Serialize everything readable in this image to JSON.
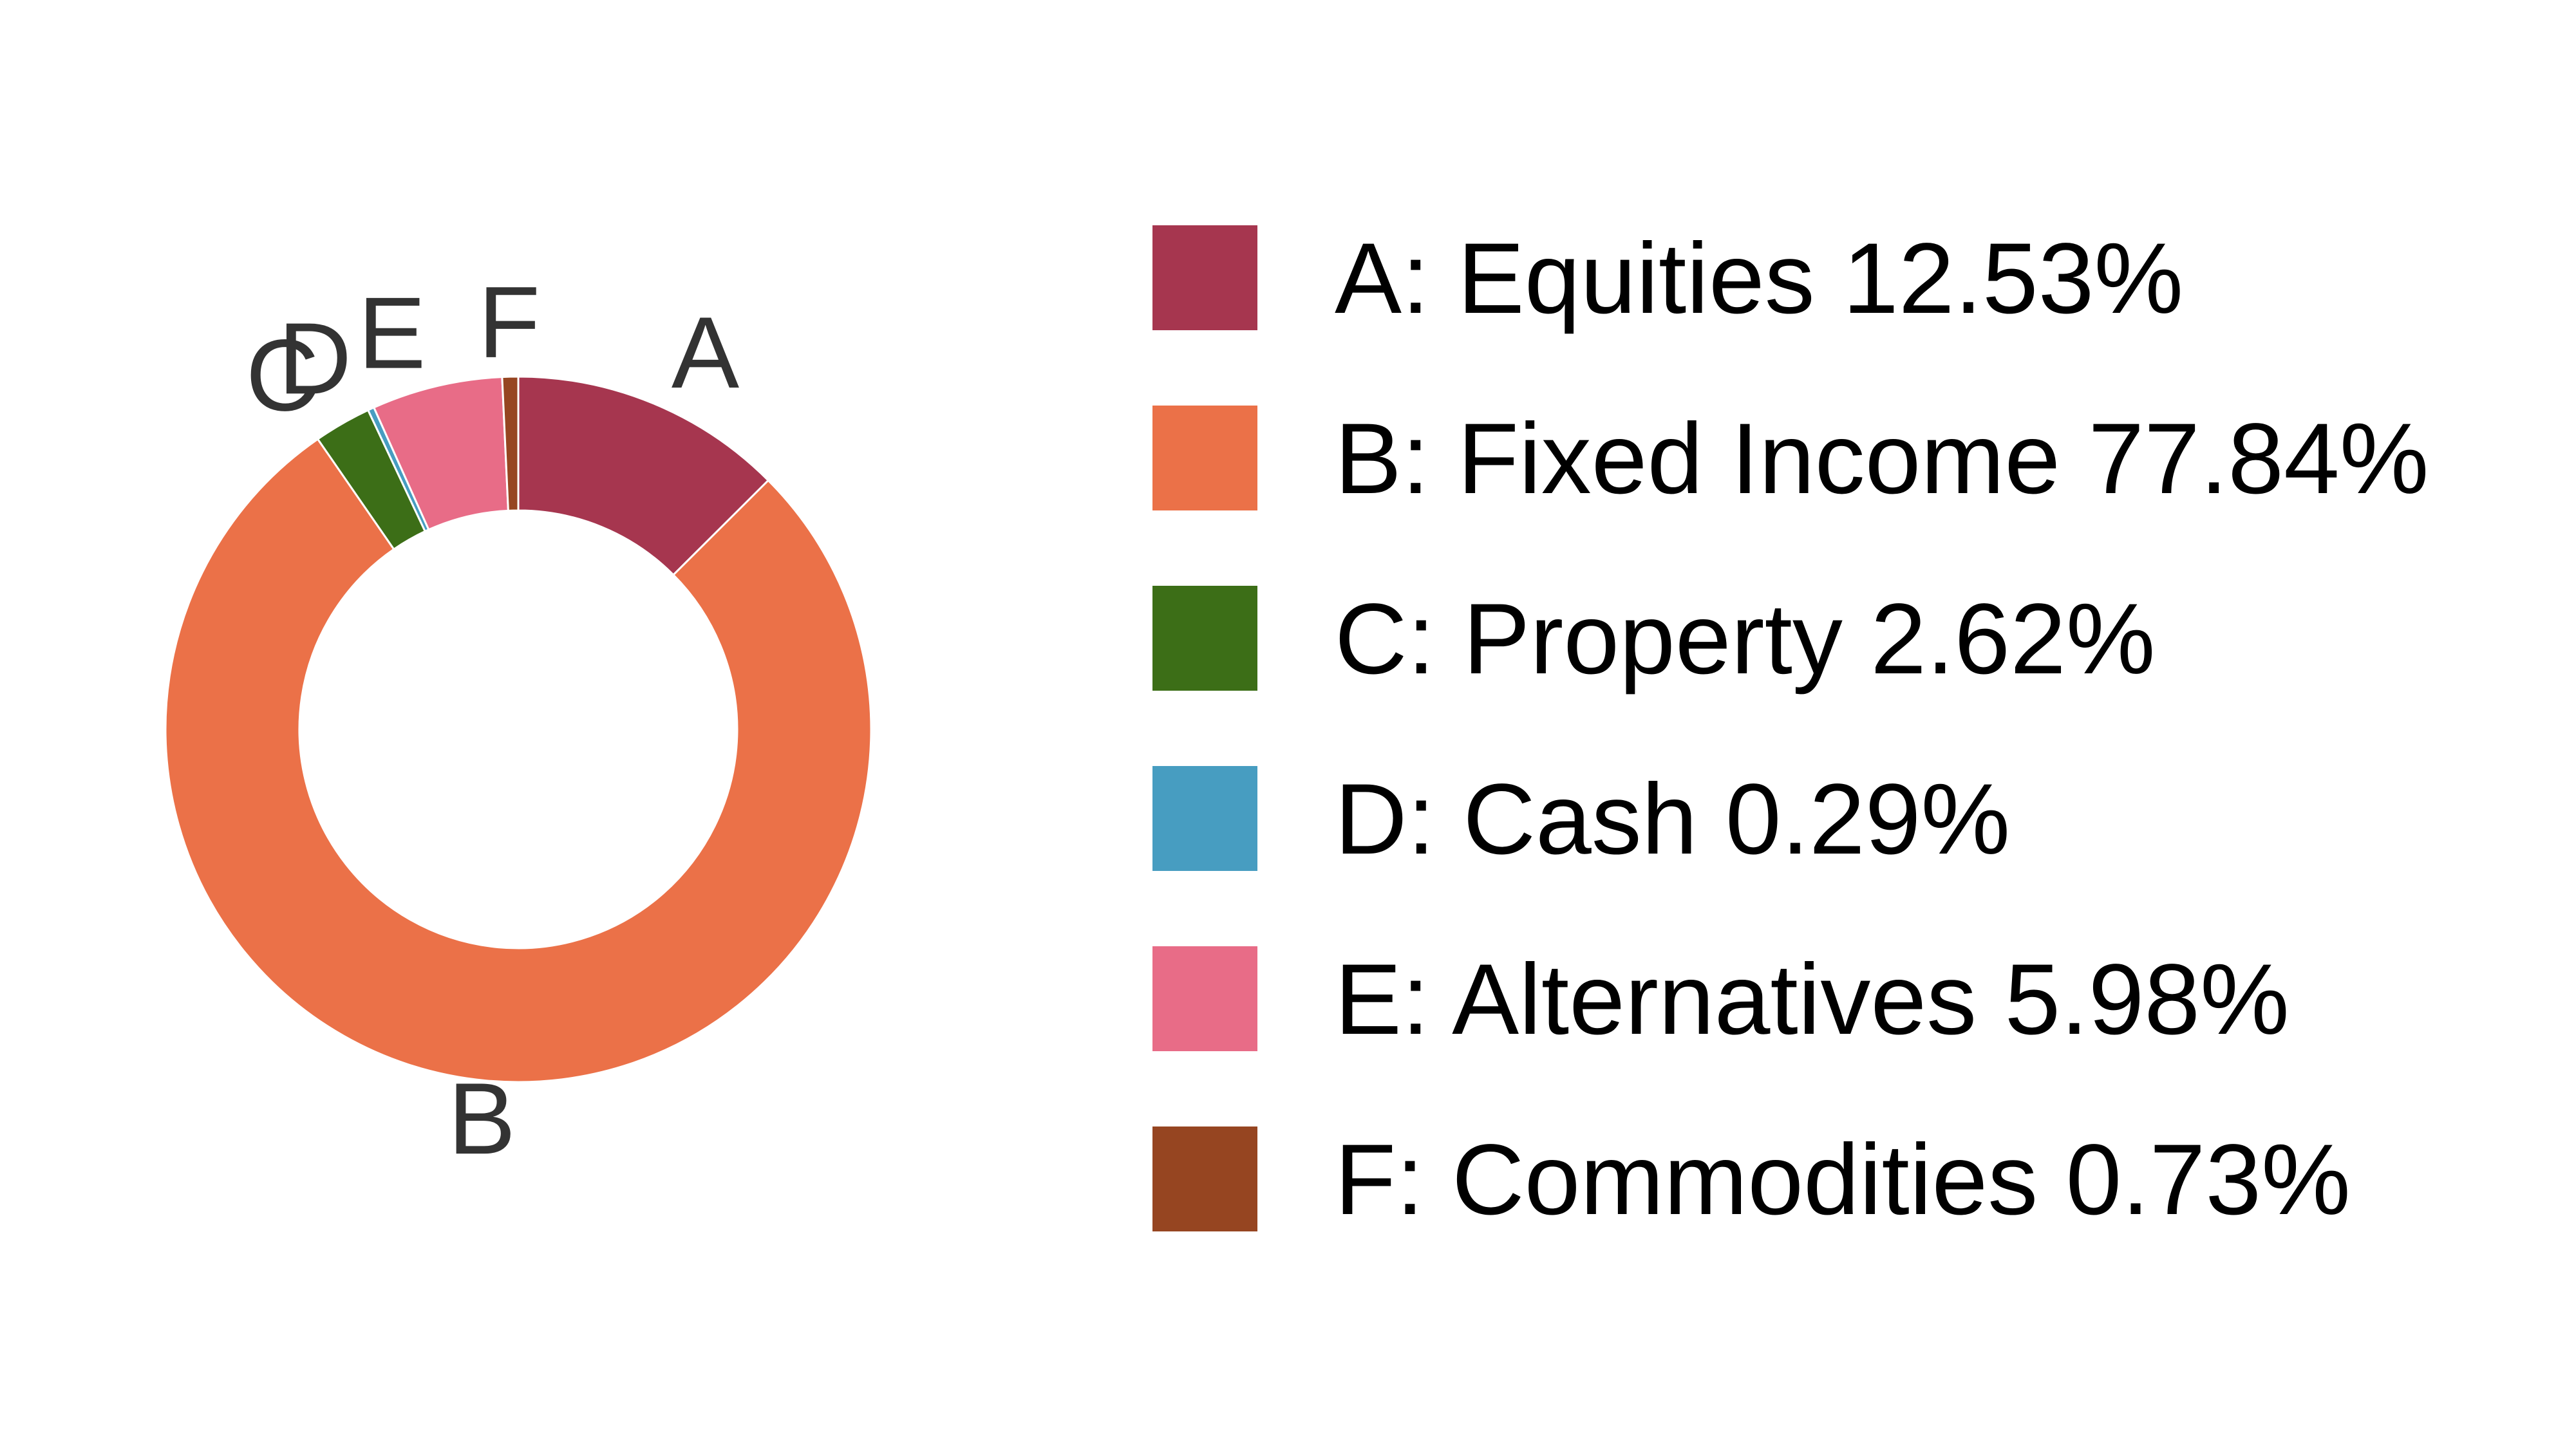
{
  "chart_data": {
    "type": "pie",
    "variant": "donut",
    "title": "",
    "legend_position": "right",
    "slices": [
      {
        "key": "A",
        "label": "Equities",
        "value": 12.53,
        "color": "#A6364F"
      },
      {
        "key": "B",
        "label": "Fixed Income",
        "value": 77.84,
        "color": "#EB7148"
      },
      {
        "key": "C",
        "label": "Property",
        "value": 2.62,
        "color": "#3C6E17"
      },
      {
        "key": "D",
        "label": "Cash",
        "value": 0.29,
        "color": "#479DC1"
      },
      {
        "key": "E",
        "label": "Alternatives",
        "value": 5.98,
        "color": "#E86C87"
      },
      {
        "key": "F",
        "label": "Commodities",
        "value": 0.73,
        "color": "#964521"
      }
    ],
    "legend_entries": [
      "A: Equities 12.53%",
      "B: Fixed Income 77.84%",
      "C: Property 2.62%",
      "D: Cash 0.29%",
      "E: Alternatives 5.98%",
      "F: Commodities 0.73%"
    ]
  }
}
